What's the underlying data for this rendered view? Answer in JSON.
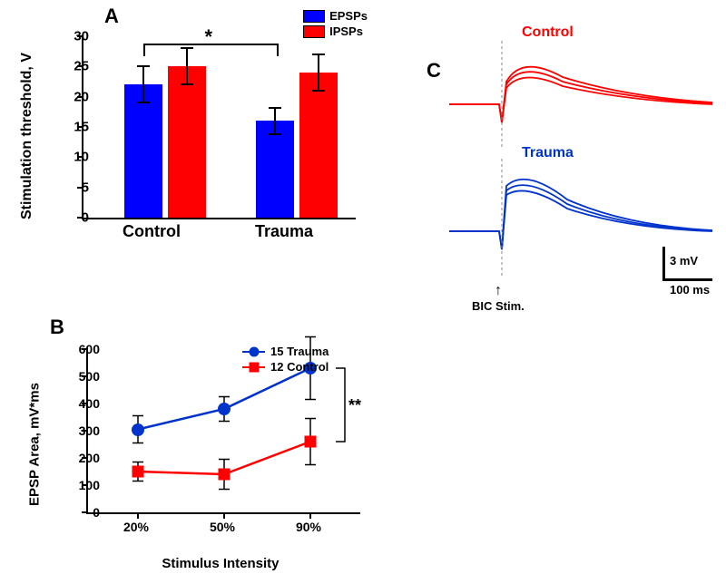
{
  "panelA": {
    "label": "A",
    "type": "bar",
    "ylabel": "Stimulation threshold, V",
    "ylim": [
      0,
      30
    ],
    "ytick_step": 5,
    "groups": [
      "Control",
      "Trauma"
    ],
    "series": [
      {
        "name": "EPSPs",
        "color": "#0000ff",
        "values": [
          22,
          16
        ],
        "err": [
          3,
          2.2
        ]
      },
      {
        "name": "IPSPs",
        "color": "#ff0000",
        "values": [
          25,
          24
        ],
        "err": [
          3,
          3
        ]
      }
    ],
    "significance": "*",
    "label_fontsize": 18,
    "tick_fontsize": 15
  },
  "panelB": {
    "label": "B",
    "type": "line",
    "ylabel": "EPSP Area, mV*ms",
    "xlabel": "Stimulus Intensity",
    "ylim": [
      0,
      600
    ],
    "ytick_step": 100,
    "xcategories": [
      "20%",
      "50%",
      "90%"
    ],
    "series": [
      {
        "name": "15 Trauma",
        "marker": "circle",
        "color": "#0033cc",
        "values": [
          305,
          380,
          530
        ],
        "err": [
          50,
          45,
          115
        ]
      },
      {
        "name": "12 Control",
        "marker": "square",
        "color": "#ff0000",
        "values": [
          150,
          140,
          260
        ],
        "err": [
          35,
          55,
          85
        ]
      }
    ],
    "significance": "**",
    "label_fontsize": 15
  },
  "panelC": {
    "label": "C",
    "traces": [
      {
        "label": "Control",
        "color": "#ff0000"
      },
      {
        "label": "Trauma",
        "color": "#0033cc"
      }
    ],
    "stim_label": "BIC Stim.",
    "scale_y": "3 mV",
    "scale_x": "100 ms"
  },
  "colors": {
    "background": "#ffffff",
    "axis": "#000000"
  }
}
